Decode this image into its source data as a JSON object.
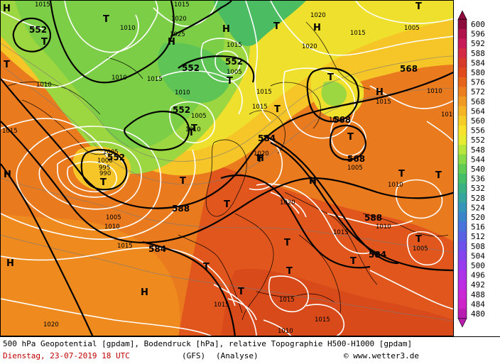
{
  "title_line": "500 hPa Geopotential [gpdam], Bodendruck [hPa], relative Topographie H500-H1000 [gpdam]",
  "date_line": "Dienstag, 23-07-2019  18 UTC",
  "model": "(GFS)",
  "analysis": "(Analyse)",
  "credit": "www.wetter3.de",
  "copyright_symbol": "©",
  "legend": {
    "values": [
      "600",
      "596",
      "592",
      "588",
      "584",
      "580",
      "576",
      "572",
      "568",
      "564",
      "560",
      "556",
      "552",
      "548",
      "544",
      "540",
      "536",
      "532",
      "528",
      "524",
      "520",
      "516",
      "512",
      "508",
      "504",
      "500",
      "496",
      "492",
      "488",
      "484",
      "480"
    ],
    "colors": [
      "#8c0a3c",
      "#b0124c",
      "#c81a58",
      "#d42a44",
      "#d83a2a",
      "#e04a1c",
      "#e6641a",
      "#ec7e1e",
      "#f09a22",
      "#f4b424",
      "#f6cc26",
      "#f8e22c",
      "#e8ec30",
      "#b8e63a",
      "#88da46",
      "#60cc54",
      "#44be68",
      "#38b282",
      "#34a69e",
      "#3496b8",
      "#3a84cc",
      "#4872dc",
      "#5a60e4",
      "#6e50ea",
      "#8444ee",
      "#9a3aee",
      "#ae32ea",
      "#bc2ce2",
      "#c828d6",
      "#cc24c8",
      "#b81cb0"
    ]
  },
  "pressure_centers": [
    {
      "label": "H"
    },
    {
      "label": "T"
    },
    {
      "label": "T"
    },
    {
      "label": "H"
    },
    {
      "label": "H"
    },
    {
      "label": "H"
    },
    {
      "label": "T"
    },
    {
      "label": "T"
    },
    {
      "label": "T"
    },
    {
      "label": "T"
    },
    {
      "label": "H"
    },
    {
      "label": "T"
    },
    {
      "label": "T"
    },
    {
      "label": "T"
    },
    {
      "label": "T"
    },
    {
      "label": "T"
    },
    {
      "label": "H"
    },
    {
      "label": "T"
    },
    {
      "label": "T"
    },
    {
      "label": "T"
    },
    {
      "label": "H"
    },
    {
      "label": "T"
    },
    {
      "label": "T"
    },
    {
      "label": "T"
    },
    {
      "label": "H"
    },
    {
      "label": "T"
    },
    {
      "label": "T"
    },
    {
      "label": "T"
    },
    {
      "label": "T"
    },
    {
      "label": "H"
    },
    {
      "label": "T"
    },
    {
      "label": "H"
    },
    {
      "label": "T"
    }
  ],
  "geopotential_labels": [
    {
      "text": "552"
    },
    {
      "text": "552"
    },
    {
      "text": "552"
    },
    {
      "text": "552"
    },
    {
      "text": "552"
    },
    {
      "text": "568"
    },
    {
      "text": "568"
    },
    {
      "text": "568"
    },
    {
      "text": "584"
    },
    {
      "text": "584"
    },
    {
      "text": "588"
    },
    {
      "text": "588"
    },
    {
      "text": "584"
    }
  ],
  "pressure_labels": [
    {
      "text": "1015"
    },
    {
      "text": "1010"
    },
    {
      "text": "1020"
    },
    {
      "text": "1025"
    },
    {
      "text": "1015"
    },
    {
      "text": "1010"
    },
    {
      "text": "1015"
    },
    {
      "text": "1020"
    },
    {
      "text": "1005"
    },
    {
      "text": "1015"
    },
    {
      "text": "1005"
    },
    {
      "text": "1010"
    },
    {
      "text": "1010"
    },
    {
      "text": "1015"
    },
    {
      "text": "1010"
    },
    {
      "text": "1005"
    },
    {
      "text": "1015"
    },
    {
      "text": "1015"
    },
    {
      "text": "1010"
    },
    {
      "text": "1020"
    },
    {
      "text": "1005"
    },
    {
      "text": "1000"
    },
    {
      "text": "995"
    },
    {
      "text": "990"
    },
    {
      "text": "1005"
    },
    {
      "text": "1010"
    },
    {
      "text": "1015"
    },
    {
      "text": "1020"
    },
    {
      "text": "1010"
    },
    {
      "text": "1020"
    },
    {
      "text": "1015"
    },
    {
      "text": "1010"
    },
    {
      "text": "1015"
    },
    {
      "text": "1005"
    },
    {
      "text": "1015"
    },
    {
      "text": "1015"
    },
    {
      "text": "1015"
    },
    {
      "text": "1010"
    },
    {
      "text": "1020"
    },
    {
      "text": "1015"
    },
    {
      "text": "1010"
    },
    {
      "text": "1010"
    },
    {
      "text": "1005"
    }
  ]
}
